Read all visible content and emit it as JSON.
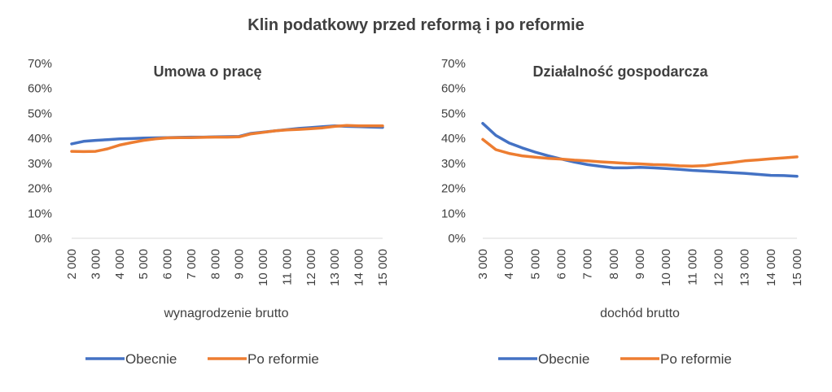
{
  "main_title": "Klin podatkowy przed reformą i po reformie",
  "colors": {
    "obecnie": "#4472C4",
    "po_reformie": "#ED7D31",
    "text": "#404040"
  },
  "chart_data": [
    {
      "type": "line",
      "title": "Umowa o pracę",
      "xlabel": "wynagrodzenie brutto",
      "ylabel": "",
      "yticks": [
        "0%",
        "10%",
        "20%",
        "30%",
        "40%",
        "50%",
        "60%",
        "70%"
      ],
      "ylim": [
        0,
        0.7
      ],
      "xtick_labels": [
        "2 000",
        "3 000",
        "4 000",
        "5 000",
        "6 000",
        "7 000",
        "8 000",
        "9 000",
        "10 000",
        "11 000",
        "12 000",
        "13 000",
        "14 000",
        "15 000"
      ],
      "x": [
        2000,
        2500,
        3000,
        3500,
        4000,
        4500,
        5000,
        5500,
        6000,
        6500,
        7000,
        7500,
        8000,
        8500,
        9000,
        9500,
        10000,
        10500,
        11000,
        11500,
        12000,
        12500,
        13000,
        13500,
        14000,
        14500,
        15000
      ],
      "series": [
        {
          "name": "Obecnie",
          "color_key": "obecnie",
          "values": [
            0.378,
            0.388,
            0.392,
            0.395,
            0.398,
            0.399,
            0.401,
            0.402,
            0.403,
            0.404,
            0.405,
            0.405,
            0.406,
            0.407,
            0.408,
            0.42,
            0.425,
            0.43,
            0.435,
            0.44,
            0.443,
            0.447,
            0.45,
            0.448,
            0.447,
            0.445,
            0.444
          ]
        },
        {
          "name": "Po reformie",
          "color_key": "po_reformie",
          "values": [
            0.348,
            0.347,
            0.348,
            0.358,
            0.373,
            0.383,
            0.392,
            0.398,
            0.402,
            0.403,
            0.403,
            0.404,
            0.405,
            0.405,
            0.406,
            0.418,
            0.424,
            0.43,
            0.434,
            0.436,
            0.439,
            0.442,
            0.448,
            0.452,
            0.45,
            0.45,
            0.45
          ]
        }
      ],
      "legend": [
        "Obecnie",
        "Po reformie"
      ],
      "legend_position": "bottom",
      "grid": false
    },
    {
      "type": "line",
      "title": "Działalność gospodarcza",
      "xlabel": "dochód brutto",
      "ylabel": "",
      "yticks": [
        "0%",
        "10%",
        "20%",
        "30%",
        "40%",
        "50%",
        "60%",
        "70%"
      ],
      "ylim": [
        0,
        0.7
      ],
      "xtick_labels": [
        "3 000",
        "4 000",
        "5 000",
        "6 000",
        "7 000",
        "8 000",
        "9 000",
        "10 000",
        "11 000",
        "12 000",
        "13 000",
        "14 000",
        "15 000"
      ],
      "x": [
        3000,
        3500,
        4000,
        4500,
        5000,
        5500,
        6000,
        6500,
        7000,
        7500,
        8000,
        8500,
        9000,
        9500,
        10000,
        10500,
        11000,
        11500,
        12000,
        12500,
        13000,
        13500,
        14000,
        14500,
        15000
      ],
      "series": [
        {
          "name": "Obecnie",
          "color_key": "obecnie",
          "values": [
            0.46,
            0.412,
            0.382,
            0.362,
            0.345,
            0.33,
            0.317,
            0.305,
            0.295,
            0.288,
            0.282,
            0.282,
            0.284,
            0.282,
            0.279,
            0.276,
            0.272,
            0.269,
            0.266,
            0.263,
            0.26,
            0.256,
            0.252,
            0.251,
            0.248
          ]
        },
        {
          "name": "Po reformie",
          "color_key": "po_reformie",
          "values": [
            0.396,
            0.355,
            0.34,
            0.33,
            0.325,
            0.32,
            0.317,
            0.313,
            0.31,
            0.306,
            0.303,
            0.3,
            0.298,
            0.295,
            0.294,
            0.29,
            0.289,
            0.291,
            0.298,
            0.303,
            0.31,
            0.314,
            0.318,
            0.322,
            0.326
          ]
        }
      ],
      "legend": [
        "Obecnie",
        "Po reformie"
      ],
      "legend_position": "bottom",
      "grid": false
    }
  ]
}
